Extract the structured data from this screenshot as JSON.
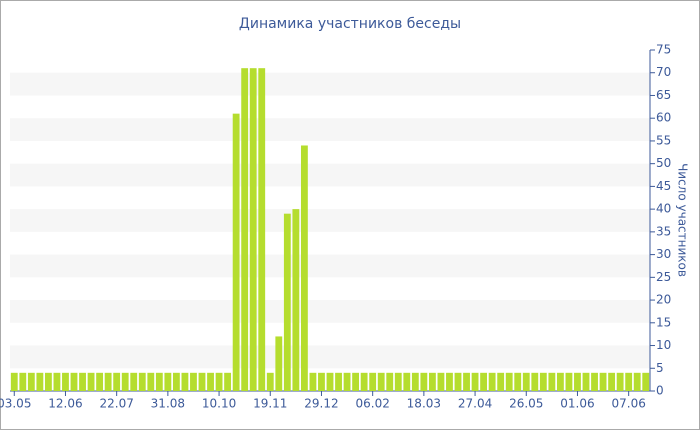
{
  "chart_data": {
    "type": "bar",
    "title": "Динамика участников беседы",
    "y_label": "Число участников",
    "categories": [
      "03.05",
      null,
      null,
      null,
      null,
      null,
      "12.06",
      null,
      null,
      null,
      null,
      null,
      "22.07",
      null,
      null,
      null,
      null,
      null,
      "31.08",
      null,
      null,
      null,
      null,
      null,
      "10.10",
      null,
      null,
      null,
      null,
      null,
      "19.11",
      null,
      null,
      null,
      null,
      null,
      "29.12",
      null,
      null,
      null,
      null,
      null,
      "06.02",
      null,
      null,
      null,
      null,
      null,
      "18.03",
      null,
      null,
      null,
      null,
      null,
      "27.04",
      null,
      null,
      null,
      null,
      null,
      "26.05",
      null,
      null,
      null,
      null,
      null,
      "01.06",
      null,
      null,
      null,
      null,
      null,
      "07.06",
      null,
      null
    ],
    "values": [
      4,
      4,
      4,
      4,
      4,
      4,
      4,
      4,
      4,
      4,
      4,
      4,
      4,
      4,
      4,
      4,
      4,
      4,
      4,
      4,
      4,
      4,
      4,
      4,
      4,
      4,
      61,
      71,
      71,
      71,
      4,
      12,
      39,
      40,
      54,
      4,
      4,
      4,
      4,
      4,
      4,
      4,
      4,
      4,
      4,
      4,
      4,
      4,
      4,
      4,
      4,
      4,
      4,
      4,
      4,
      4,
      4,
      4,
      4,
      4,
      4,
      4,
      4,
      4,
      4,
      4,
      4,
      4,
      4,
      4,
      4,
      4,
      4,
      4,
      4
    ],
    "color": "#b5dd2e",
    "ylim": [
      0,
      75
    ],
    "yticks": [
      0,
      5,
      10,
      15,
      20,
      25,
      30,
      35,
      40,
      45,
      50,
      55,
      60,
      65,
      70,
      75
    ],
    "grid": true,
    "y_axis_side": "right"
  }
}
